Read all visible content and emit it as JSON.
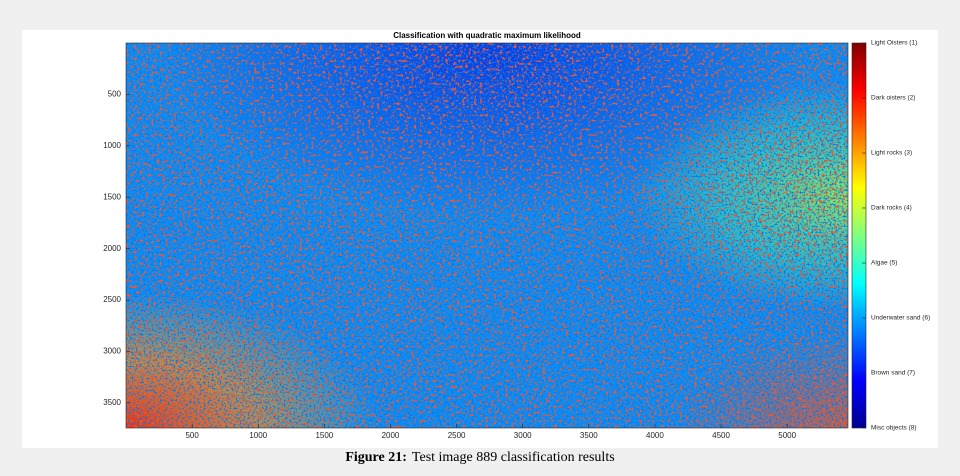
{
  "chart_data": {
    "type": "image",
    "title": "Classification with quadratic maximum likelihood",
    "xlim": [
      0,
      5460
    ],
    "ylim": [
      0,
      3744
    ],
    "y_reversed": true,
    "xticks": [
      500,
      1000,
      1500,
      2000,
      2500,
      3000,
      3500,
      4000,
      4500,
      5000
    ],
    "yticks": [
      500,
      1000,
      1500,
      2000,
      2500,
      3000,
      3500
    ],
    "colorbar": {
      "colormap": "jet",
      "clim": [
        1,
        8
      ],
      "reversed": true,
      "ticks": [
        {
          "value": 1,
          "label": "Light Oisters (1)"
        },
        {
          "value": 2,
          "label": "Dark oisters (2)"
        },
        {
          "value": 3,
          "label": "Light rocks (3)"
        },
        {
          "value": 4,
          "label": "Dark rocks (4)"
        },
        {
          "value": 5,
          "label": "Algae (5)"
        },
        {
          "value": 6,
          "label": "Underwater sand (6)"
        },
        {
          "value": 7,
          "label": "Brown sand (7)"
        },
        {
          "value": 8,
          "label": "Misc objects (8)"
        }
      ]
    }
  },
  "caption": {
    "label": "Figure 21:",
    "text": "Test image 889 classification results"
  }
}
